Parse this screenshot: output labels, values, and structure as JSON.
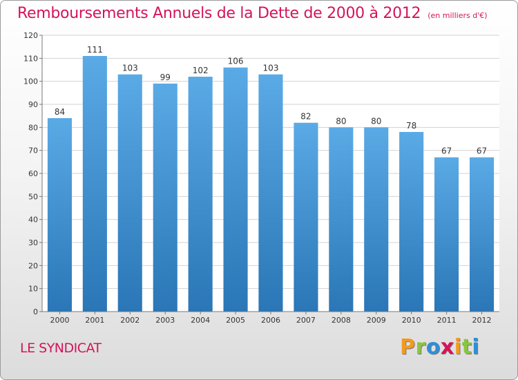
{
  "header": {
    "title": "Remboursements Annuels de la Dette de 2000 à 2012",
    "unit": "(en milliers d'€)"
  },
  "footer": {
    "commune": "LE SYNDICAT",
    "logo_text": "Proxiti",
    "logo_colors": [
      "#f39a1e",
      "#8bc53f",
      "#2f8fd6",
      "#d4145a",
      "#f39a1e",
      "#8bc53f",
      "#2f8fd6"
    ]
  },
  "chart_data": {
    "type": "bar",
    "categories": [
      "2000",
      "2001",
      "2002",
      "2003",
      "2004",
      "2005",
      "2006",
      "2007",
      "2008",
      "2009",
      "2010",
      "2011",
      "2012"
    ],
    "values": [
      84,
      111,
      103,
      99,
      102,
      106,
      103,
      82,
      80,
      80,
      78,
      67,
      67
    ],
    "ylim": [
      0,
      120
    ],
    "yticks": [
      0,
      10,
      20,
      30,
      40,
      50,
      60,
      70,
      80,
      90,
      100,
      110,
      120
    ],
    "grid": true,
    "colors": {
      "bar_top": "#5aaae6",
      "bar_bottom": "#2a76b6",
      "grid": "#d2d2d2",
      "axis": "#777777",
      "text": "#333333"
    }
  }
}
